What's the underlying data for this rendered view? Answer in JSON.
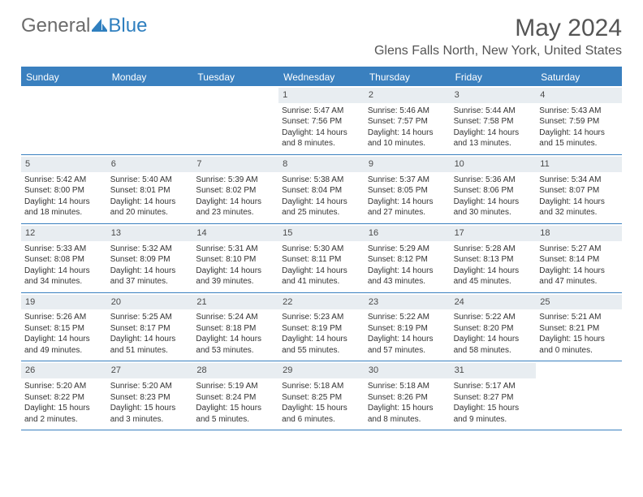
{
  "logo": {
    "part1": "General",
    "part2": "Blue"
  },
  "title": "May 2024",
  "location": "Glens Falls North, New York, United States",
  "colors": {
    "header_bg": "#3a80bf",
    "header_text": "#ffffff",
    "daynum_bg": "#e8edf1",
    "body_text": "#333333",
    "logo_gray": "#6b6b6b",
    "logo_blue": "#2f7fbf"
  },
  "day_names": [
    "Sunday",
    "Monday",
    "Tuesday",
    "Wednesday",
    "Thursday",
    "Friday",
    "Saturday"
  ],
  "weeks": [
    [
      {
        "empty": true
      },
      {
        "empty": true
      },
      {
        "empty": true
      },
      {
        "num": "1",
        "sunrise": "Sunrise: 5:47 AM",
        "sunset": "Sunset: 7:56 PM",
        "daylight1": "Daylight: 14 hours",
        "daylight2": "and 8 minutes."
      },
      {
        "num": "2",
        "sunrise": "Sunrise: 5:46 AM",
        "sunset": "Sunset: 7:57 PM",
        "daylight1": "Daylight: 14 hours",
        "daylight2": "and 10 minutes."
      },
      {
        "num": "3",
        "sunrise": "Sunrise: 5:44 AM",
        "sunset": "Sunset: 7:58 PM",
        "daylight1": "Daylight: 14 hours",
        "daylight2": "and 13 minutes."
      },
      {
        "num": "4",
        "sunrise": "Sunrise: 5:43 AM",
        "sunset": "Sunset: 7:59 PM",
        "daylight1": "Daylight: 14 hours",
        "daylight2": "and 15 minutes."
      }
    ],
    [
      {
        "num": "5",
        "sunrise": "Sunrise: 5:42 AM",
        "sunset": "Sunset: 8:00 PM",
        "daylight1": "Daylight: 14 hours",
        "daylight2": "and 18 minutes."
      },
      {
        "num": "6",
        "sunrise": "Sunrise: 5:40 AM",
        "sunset": "Sunset: 8:01 PM",
        "daylight1": "Daylight: 14 hours",
        "daylight2": "and 20 minutes."
      },
      {
        "num": "7",
        "sunrise": "Sunrise: 5:39 AM",
        "sunset": "Sunset: 8:02 PM",
        "daylight1": "Daylight: 14 hours",
        "daylight2": "and 23 minutes."
      },
      {
        "num": "8",
        "sunrise": "Sunrise: 5:38 AM",
        "sunset": "Sunset: 8:04 PM",
        "daylight1": "Daylight: 14 hours",
        "daylight2": "and 25 minutes."
      },
      {
        "num": "9",
        "sunrise": "Sunrise: 5:37 AM",
        "sunset": "Sunset: 8:05 PM",
        "daylight1": "Daylight: 14 hours",
        "daylight2": "and 27 minutes."
      },
      {
        "num": "10",
        "sunrise": "Sunrise: 5:36 AM",
        "sunset": "Sunset: 8:06 PM",
        "daylight1": "Daylight: 14 hours",
        "daylight2": "and 30 minutes."
      },
      {
        "num": "11",
        "sunrise": "Sunrise: 5:34 AM",
        "sunset": "Sunset: 8:07 PM",
        "daylight1": "Daylight: 14 hours",
        "daylight2": "and 32 minutes."
      }
    ],
    [
      {
        "num": "12",
        "sunrise": "Sunrise: 5:33 AM",
        "sunset": "Sunset: 8:08 PM",
        "daylight1": "Daylight: 14 hours",
        "daylight2": "and 34 minutes."
      },
      {
        "num": "13",
        "sunrise": "Sunrise: 5:32 AM",
        "sunset": "Sunset: 8:09 PM",
        "daylight1": "Daylight: 14 hours",
        "daylight2": "and 37 minutes."
      },
      {
        "num": "14",
        "sunrise": "Sunrise: 5:31 AM",
        "sunset": "Sunset: 8:10 PM",
        "daylight1": "Daylight: 14 hours",
        "daylight2": "and 39 minutes."
      },
      {
        "num": "15",
        "sunrise": "Sunrise: 5:30 AM",
        "sunset": "Sunset: 8:11 PM",
        "daylight1": "Daylight: 14 hours",
        "daylight2": "and 41 minutes."
      },
      {
        "num": "16",
        "sunrise": "Sunrise: 5:29 AM",
        "sunset": "Sunset: 8:12 PM",
        "daylight1": "Daylight: 14 hours",
        "daylight2": "and 43 minutes."
      },
      {
        "num": "17",
        "sunrise": "Sunrise: 5:28 AM",
        "sunset": "Sunset: 8:13 PM",
        "daylight1": "Daylight: 14 hours",
        "daylight2": "and 45 minutes."
      },
      {
        "num": "18",
        "sunrise": "Sunrise: 5:27 AM",
        "sunset": "Sunset: 8:14 PM",
        "daylight1": "Daylight: 14 hours",
        "daylight2": "and 47 minutes."
      }
    ],
    [
      {
        "num": "19",
        "sunrise": "Sunrise: 5:26 AM",
        "sunset": "Sunset: 8:15 PM",
        "daylight1": "Daylight: 14 hours",
        "daylight2": "and 49 minutes."
      },
      {
        "num": "20",
        "sunrise": "Sunrise: 5:25 AM",
        "sunset": "Sunset: 8:17 PM",
        "daylight1": "Daylight: 14 hours",
        "daylight2": "and 51 minutes."
      },
      {
        "num": "21",
        "sunrise": "Sunrise: 5:24 AM",
        "sunset": "Sunset: 8:18 PM",
        "daylight1": "Daylight: 14 hours",
        "daylight2": "and 53 minutes."
      },
      {
        "num": "22",
        "sunrise": "Sunrise: 5:23 AM",
        "sunset": "Sunset: 8:19 PM",
        "daylight1": "Daylight: 14 hours",
        "daylight2": "and 55 minutes."
      },
      {
        "num": "23",
        "sunrise": "Sunrise: 5:22 AM",
        "sunset": "Sunset: 8:19 PM",
        "daylight1": "Daylight: 14 hours",
        "daylight2": "and 57 minutes."
      },
      {
        "num": "24",
        "sunrise": "Sunrise: 5:22 AM",
        "sunset": "Sunset: 8:20 PM",
        "daylight1": "Daylight: 14 hours",
        "daylight2": "and 58 minutes."
      },
      {
        "num": "25",
        "sunrise": "Sunrise: 5:21 AM",
        "sunset": "Sunset: 8:21 PM",
        "daylight1": "Daylight: 15 hours",
        "daylight2": "and 0 minutes."
      }
    ],
    [
      {
        "num": "26",
        "sunrise": "Sunrise: 5:20 AM",
        "sunset": "Sunset: 8:22 PM",
        "daylight1": "Daylight: 15 hours",
        "daylight2": "and 2 minutes."
      },
      {
        "num": "27",
        "sunrise": "Sunrise: 5:20 AM",
        "sunset": "Sunset: 8:23 PM",
        "daylight1": "Daylight: 15 hours",
        "daylight2": "and 3 minutes."
      },
      {
        "num": "28",
        "sunrise": "Sunrise: 5:19 AM",
        "sunset": "Sunset: 8:24 PM",
        "daylight1": "Daylight: 15 hours",
        "daylight2": "and 5 minutes."
      },
      {
        "num": "29",
        "sunrise": "Sunrise: 5:18 AM",
        "sunset": "Sunset: 8:25 PM",
        "daylight1": "Daylight: 15 hours",
        "daylight2": "and 6 minutes."
      },
      {
        "num": "30",
        "sunrise": "Sunrise: 5:18 AM",
        "sunset": "Sunset: 8:26 PM",
        "daylight1": "Daylight: 15 hours",
        "daylight2": "and 8 minutes."
      },
      {
        "num": "31",
        "sunrise": "Sunrise: 5:17 AM",
        "sunset": "Sunset: 8:27 PM",
        "daylight1": "Daylight: 15 hours",
        "daylight2": "and 9 minutes."
      },
      {
        "empty": true
      }
    ]
  ]
}
